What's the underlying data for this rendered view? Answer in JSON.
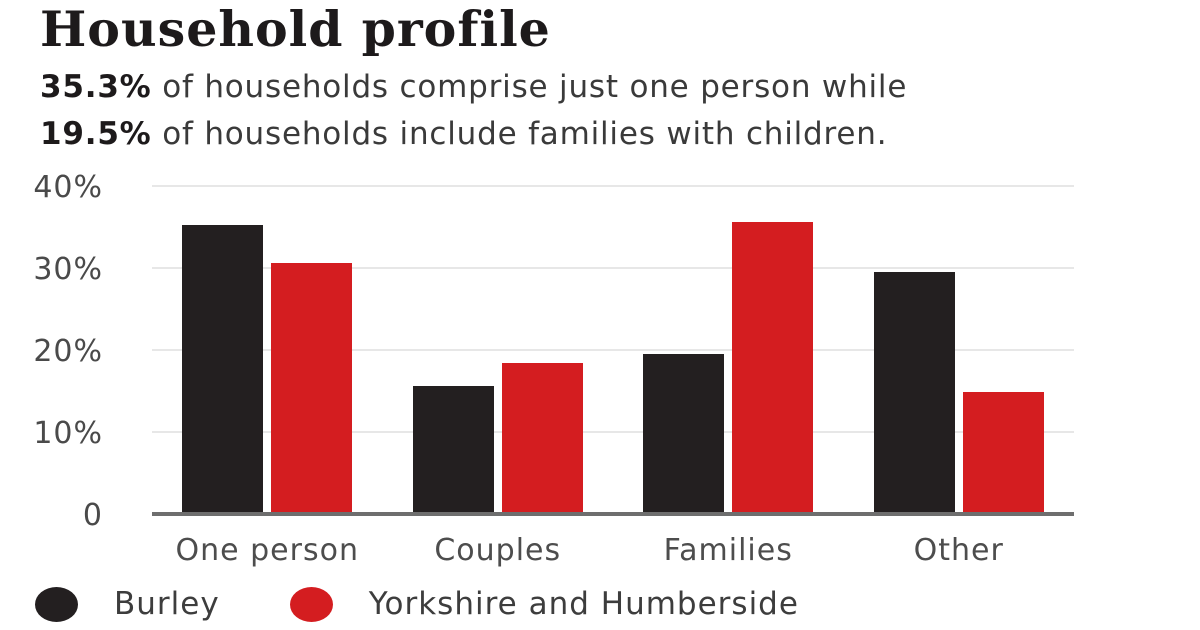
{
  "title": "Household profile",
  "subtitle": {
    "line1": {
      "bold": "35.3%",
      "rest": " of households comprise just one person while"
    },
    "line2": {
      "bold": "19.5%",
      "rest": " of households include families with children."
    }
  },
  "chart_data": {
    "type": "bar",
    "title": "Household profile",
    "categories": [
      "One person",
      "Couples",
      "Families",
      "Other"
    ],
    "series": [
      {
        "name": "Burley",
        "color": "#231f20",
        "values": [
          35.3,
          15.6,
          19.5,
          29.5
        ]
      },
      {
        "name": "Yorkshire and Humberside",
        "color": "#d41d20",
        "values": [
          30.6,
          18.4,
          35.6,
          14.9
        ]
      }
    ],
    "y_axis": {
      "min": 0,
      "max": 40,
      "ticks": [
        {
          "label": "40%",
          "value": 40
        },
        {
          "label": "30%",
          "value": 30
        },
        {
          "label": "20%",
          "value": 20
        },
        {
          "label": "10%",
          "value": 10
        },
        {
          "label": "0",
          "value": 0
        }
      ]
    },
    "xlabel": "",
    "ylabel": "",
    "grid": true,
    "legend_position": "bottom-left"
  },
  "colors": {
    "background": "#ffffff",
    "title_text": "#1d1a1b",
    "body_text": "#3a3a3a",
    "axis_text": "#4a4a4a",
    "gridline": "#e7e7e7",
    "axis_line": "#6e6e6e",
    "series_burley": "#231f20",
    "series_yorkshire": "#d41d20"
  }
}
